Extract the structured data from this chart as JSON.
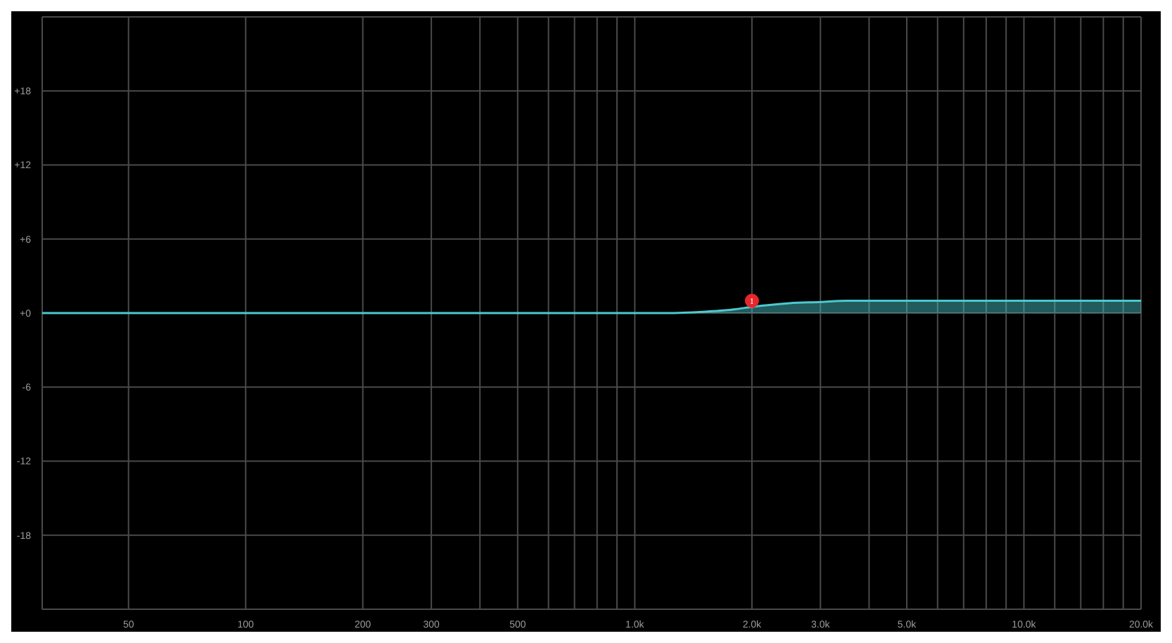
{
  "chart_data": {
    "type": "area",
    "log": "x",
    "grid": true,
    "legend": false,
    "xlim": [
      30,
      20000
    ],
    "xticks": [
      50,
      100,
      200,
      300,
      {
        "value": 400,
        "label": null
      },
      500,
      {
        "value": 600,
        "label": null
      },
      {
        "value": 700,
        "label": null
      },
      {
        "value": 800,
        "label": null
      },
      {
        "value": 900,
        "label": null
      },
      {
        "value": 1000,
        "label": "1.0k"
      },
      {
        "value": 2000,
        "label": "2.0k"
      },
      {
        "value": 3000,
        "label": "3.0k"
      },
      {
        "value": 4000,
        "label": null
      },
      {
        "value": 5000,
        "label": "5.0k"
      },
      {
        "value": 6000,
        "label": null
      },
      {
        "value": 7000,
        "label": null
      },
      {
        "value": 8000,
        "label": null
      },
      {
        "value": 9000,
        "label": null
      },
      {
        "value": 10000,
        "label": "10.0k"
      },
      {
        "value": 12000,
        "label": null
      },
      {
        "value": 14000,
        "label": null
      },
      {
        "value": 16000,
        "label": null
      },
      {
        "value": 18000,
        "label": null
      },
      {
        "value": 20000,
        "label": "20.0k"
      }
    ],
    "ylim": [
      -24,
      24
    ],
    "yticks": [
      {
        "value": 18,
        "label": "+18"
      },
      {
        "value": 12,
        "label": "+12"
      },
      {
        "value": 6,
        "label": "+6"
      },
      {
        "value": 0,
        "label": "+0"
      },
      {
        "value": -6,
        "label": "-6"
      },
      {
        "value": -12,
        "label": "-12"
      },
      {
        "value": -18,
        "label": "-18"
      }
    ],
    "series": [
      {
        "color": "#4cc9cf",
        "marker": "none",
        "x": [
          30,
          100,
          500,
          1000,
          1200,
          1500,
          1800,
          2000,
          2500,
          3000,
          3500,
          5000,
          10000,
          20000
        ],
        "values": [
          0,
          0,
          0,
          0,
          0,
          0.1,
          0.3,
          0.5,
          0.8,
          0.9,
          1,
          1,
          1,
          1
        ]
      },
      {
        "type": "scatter",
        "color": "#e8262b",
        "marker": "circle",
        "x": [
          2000
        ],
        "values": [
          1
        ]
      }
    ],
    "annotations": [
      {
        "text": "1",
        "x": 2000,
        "y": 1
      }
    ]
  }
}
